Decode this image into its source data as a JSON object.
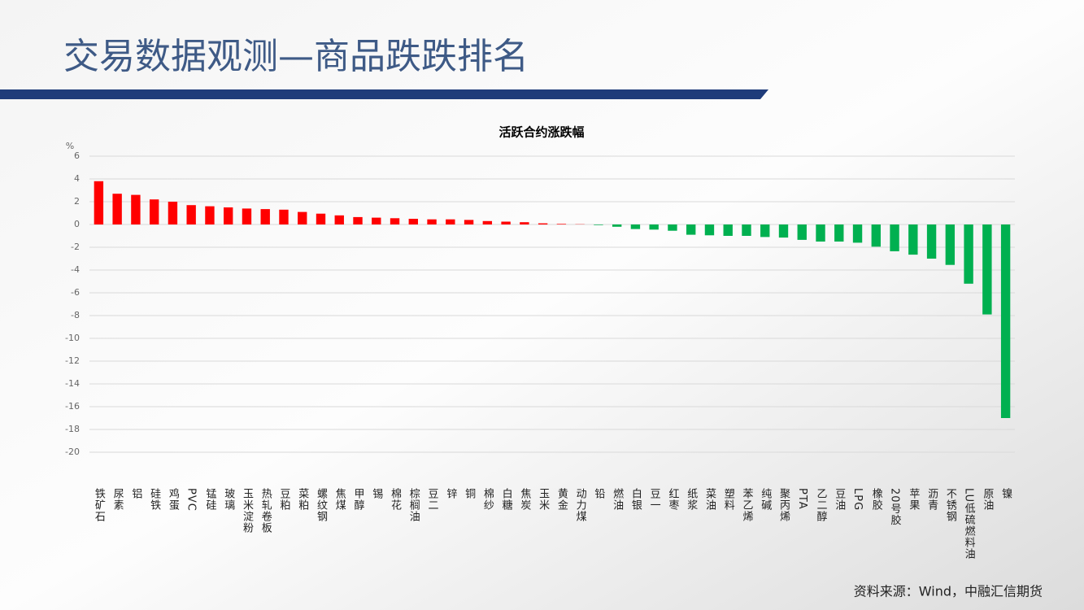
{
  "header": {
    "title": "交易数据观测—商品跌跌排名"
  },
  "chart_data": {
    "type": "bar",
    "title": "活跃合约涨跌幅",
    "y_unit": "%",
    "categories": [
      "铁矿石",
      "尿素",
      "铝",
      "硅铁",
      "鸡蛋",
      "PVC",
      "锰硅",
      "玻璃",
      "玉米淀粉",
      "热轧卷板",
      "豆粕",
      "菜粕",
      "螺纹钢",
      "焦煤",
      "甲醇",
      "锡",
      "棉花",
      "棕榈油",
      "豆二",
      "锌",
      "铜",
      "棉纱",
      "白糖",
      "焦炭",
      "玉米",
      "黄金",
      "动力煤",
      "铅",
      "燃油",
      "白银",
      "豆一",
      "红枣",
      "纸浆",
      "菜油",
      "塑料",
      "苯乙烯",
      "纯碱",
      "聚丙烯",
      "PTA",
      "乙二醇",
      "豆油",
      "LPG",
      "橡胶",
      "20号胶",
      "苹果",
      "沥青",
      "不锈钢",
      "LU低硫燃料油",
      "原油",
      "镍"
    ],
    "values": [
      3.8,
      2.7,
      2.6,
      2.2,
      2.0,
      1.7,
      1.6,
      1.5,
      1.4,
      1.35,
      1.3,
      1.1,
      0.95,
      0.8,
      0.65,
      0.6,
      0.55,
      0.5,
      0.45,
      0.45,
      0.4,
      0.3,
      0.25,
      0.2,
      0.1,
      0.05,
      0.02,
      -0.05,
      -0.2,
      -0.4,
      -0.45,
      -0.55,
      -0.9,
      -0.95,
      -1.0,
      -1.0,
      -1.1,
      -1.15,
      -1.35,
      -1.5,
      -1.5,
      -1.6,
      -1.95,
      -2.35,
      -2.65,
      -3.0,
      -3.55,
      -5.2,
      -7.9,
      -17.0
    ],
    "positive_color": "#ff0000",
    "negative_color": "#00b050",
    "ylim": [
      -20,
      6
    ],
    "yticks": [
      6,
      4,
      2,
      0,
      -2,
      -4,
      -6,
      -8,
      -10,
      -12,
      -14,
      -16,
      -18,
      -20
    ],
    "grid": true
  },
  "footer": {
    "source": "资料来源：Wind，中融汇信期货"
  }
}
